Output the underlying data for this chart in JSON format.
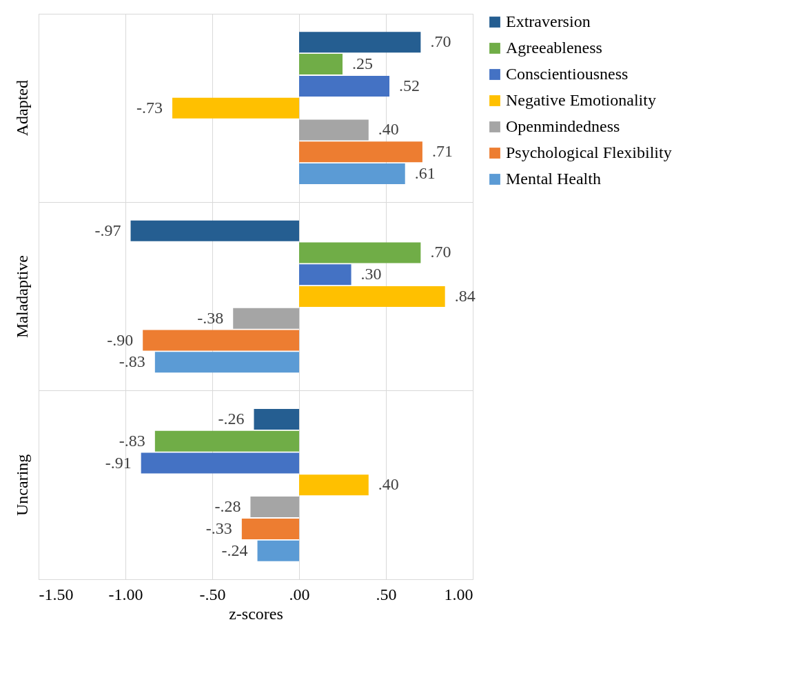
{
  "chart_data": {
    "type": "bar",
    "orientation": "horizontal",
    "xlabel": "z-scores",
    "categories": [
      "Adapted",
      "Maladaptive",
      "Uncaring"
    ],
    "series": [
      {
        "name": "Extraversion",
        "color": "#255e91",
        "values": [
          0.7,
          -0.97,
          -0.26
        ],
        "value_labels": [
          ".70",
          "-.97",
          "-.26"
        ]
      },
      {
        "name": "Agreeableness",
        "color": "#70ad47",
        "values": [
          0.25,
          0.7,
          -0.83
        ],
        "value_labels": [
          ".25",
          ".70",
          "-.83"
        ]
      },
      {
        "name": "Conscientiousness",
        "color": "#4472c4",
        "values": [
          0.52,
          0.3,
          -0.91
        ],
        "value_labels": [
          ".52",
          ".30",
          "-.91"
        ]
      },
      {
        "name": "Negative Emotionality",
        "color": "#ffc000",
        "values": [
          -0.73,
          0.84,
          0.4
        ],
        "value_labels": [
          "-.73",
          ".84",
          ".40"
        ]
      },
      {
        "name": "Openmindedness",
        "color": "#a5a5a5",
        "values": [
          0.4,
          -0.38,
          -0.28
        ],
        "value_labels": [
          ".40",
          "-.38",
          "-.28"
        ]
      },
      {
        "name": "Psychological Flexibility",
        "color": "#ed7d31",
        "values": [
          0.71,
          -0.9,
          -0.33
        ],
        "value_labels": [
          ".71",
          "-.90",
          "-.33"
        ]
      },
      {
        "name": "Mental Health",
        "color": "#5b9bd5",
        "values": [
          0.61,
          -0.83,
          -0.24
        ],
        "value_labels": [
          ".61",
          "-.83",
          "-.24"
        ]
      }
    ],
    "xlim": [
      -1.5,
      1.0
    ],
    "xticks": [
      {
        "value": -1.5,
        "label": "-1.50"
      },
      {
        "value": -1.0,
        "label": "-1.00"
      },
      {
        "value": -0.5,
        "label": "-.50"
      },
      {
        "value": 0,
        "label": ".00"
      },
      {
        "value": 0.5,
        "label": ".50"
      },
      {
        "value": 1.0,
        "label": "1.00"
      }
    ],
    "grid": true,
    "legend": "right"
  }
}
